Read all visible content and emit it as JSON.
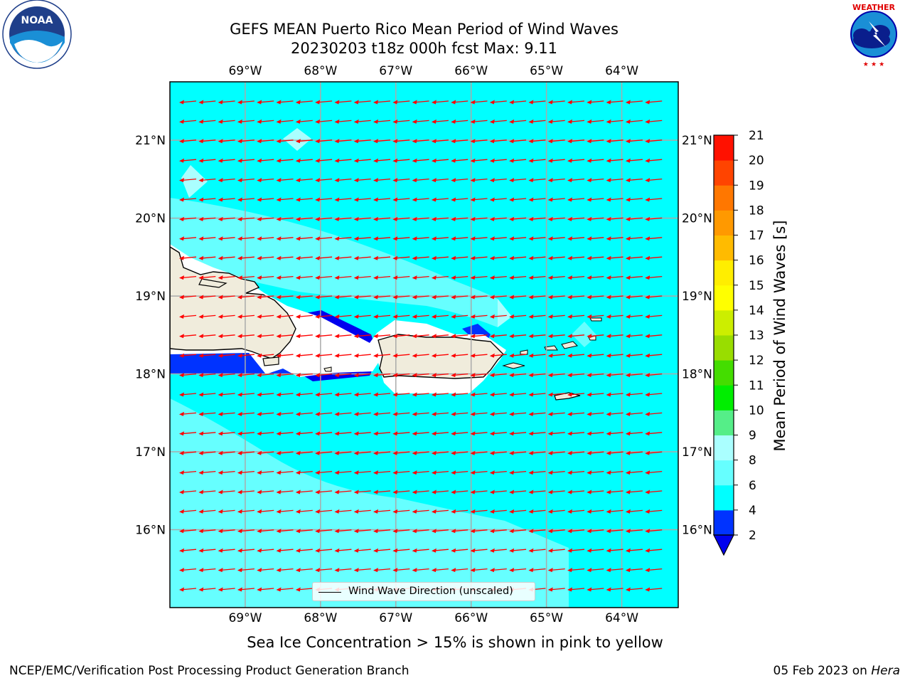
{
  "header": {
    "title_line1": "GEFS MEAN Puerto Rico Mean Period of Wind Waves",
    "title_line2": "20230203 t18z 000h fcst   Max: 9.11"
  },
  "logos": {
    "left": {
      "name": "NOAA",
      "ring_text": "NATIONAL OCEANIC AND ATMOSPHERIC ADMINISTRATION · U.S. DEPARTMENT OF COMMERCE"
    },
    "right": {
      "name": "NATIONAL WEATHER SERVICE"
    }
  },
  "map": {
    "lon_labels": [
      "69°W",
      "68°W",
      "67°W",
      "66°W",
      "65°W",
      "64°W"
    ],
    "lat_labels": [
      "21°N",
      "20°N",
      "19°N",
      "18°N",
      "17°N",
      "16°N"
    ],
    "lon_range": [
      -70.0,
      -63.25
    ],
    "lat_range": [
      15.0,
      21.75
    ],
    "grid": true,
    "vector_field": "Wind Wave Direction (unscaled)",
    "vector_color": "#ff0000",
    "land_color": "#f0ecdc"
  },
  "legend": {
    "label": "Wind Wave Direction (unscaled)"
  },
  "colorbar": {
    "label": "Mean Period of Wind Waves [s]",
    "ticks": [
      "2",
      "4",
      "6",
      "8",
      "9",
      "10",
      "11",
      "12",
      "13",
      "14",
      "15",
      "16",
      "17",
      "18",
      "19",
      "20",
      "21"
    ],
    "colors": [
      "#0033ff",
      "#00ffff",
      "#66ffff",
      "#aaffff",
      "#55ee88",
      "#00ee00",
      "#44dd00",
      "#99dd00",
      "#ccee00",
      "#ffff00",
      "#ffee00",
      "#ffbb00",
      "#ff9900",
      "#ff7700",
      "#ff4400",
      "#ff1100"
    ],
    "extend_color": "#0000ee"
  },
  "chart_data": {
    "type": "heatmap",
    "title": "GEFS MEAN Puerto Rico Mean Period of Wind Waves",
    "subtitle": "20230203 t18z 000h fcst   Max: 9.11",
    "max_value": 9.11,
    "units": "s",
    "colorbar_label": "Mean Period of Wind Waves [s]",
    "levels": [
      2,
      4,
      6,
      8,
      9,
      10,
      11,
      12,
      13,
      14,
      15,
      16,
      17,
      18,
      19,
      20,
      21
    ]
  },
  "note": "Sea Ice Concentration > 15% is shown in pink to yellow",
  "footer": {
    "left": "NCEP/EMC/Verification Post Processing Product Generation Branch",
    "right_date": "05 Feb 2023 on ",
    "right_host": "Hera"
  }
}
